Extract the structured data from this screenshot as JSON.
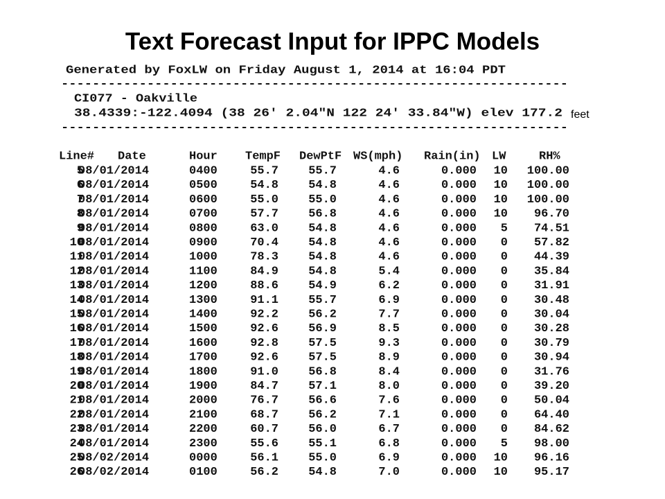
{
  "title": "Text Forecast Input for IPPC Models",
  "report": {
    "generated": "Generated by FoxLW on Friday August 1, 2014 at 16:04 PDT",
    "separator": "-----------------------------------------------------------------",
    "station": "CI077 - Oakville",
    "location": "38.4339:-122.4094  (38 26' 2.04\"N  122 24' 33.84\"W)  elev 177.2",
    "elev_unit": "feet"
  },
  "table": {
    "columns": [
      "Line#",
      "Date",
      "Hour",
      "TempF",
      "DewPtF",
      "WS(mph)",
      "Rain(in)",
      "LW",
      "RH%"
    ],
    "rows": [
      [
        "5",
        "08/01/2014",
        "0400",
        "55.7",
        "55.7",
        "4.6",
        "0.000",
        "10",
        "100.00"
      ],
      [
        "6",
        "08/01/2014",
        "0500",
        "54.8",
        "54.8",
        "4.6",
        "0.000",
        "10",
        "100.00"
      ],
      [
        "7",
        "08/01/2014",
        "0600",
        "55.0",
        "55.0",
        "4.6",
        "0.000",
        "10",
        "100.00"
      ],
      [
        "8",
        "08/01/2014",
        "0700",
        "57.7",
        "56.8",
        "4.6",
        "0.000",
        "10",
        "96.70"
      ],
      [
        "9",
        "08/01/2014",
        "0800",
        "63.0",
        "54.8",
        "4.6",
        "0.000",
        "5",
        "74.51"
      ],
      [
        "10",
        "08/01/2014",
        "0900",
        "70.4",
        "54.8",
        "4.6",
        "0.000",
        "0",
        "57.82"
      ],
      [
        "11",
        "08/01/2014",
        "1000",
        "78.3",
        "54.8",
        "4.6",
        "0.000",
        "0",
        "44.39"
      ],
      [
        "12",
        "08/01/2014",
        "1100",
        "84.9",
        "54.8",
        "5.4",
        "0.000",
        "0",
        "35.84"
      ],
      [
        "13",
        "08/01/2014",
        "1200",
        "88.6",
        "54.9",
        "6.2",
        "0.000",
        "0",
        "31.91"
      ],
      [
        "14",
        "08/01/2014",
        "1300",
        "91.1",
        "55.7",
        "6.9",
        "0.000",
        "0",
        "30.48"
      ],
      [
        "15",
        "08/01/2014",
        "1400",
        "92.2",
        "56.2",
        "7.7",
        "0.000",
        "0",
        "30.04"
      ],
      [
        "16",
        "08/01/2014",
        "1500",
        "92.6",
        "56.9",
        "8.5",
        "0.000",
        "0",
        "30.28"
      ],
      [
        "17",
        "08/01/2014",
        "1600",
        "92.8",
        "57.5",
        "9.3",
        "0.000",
        "0",
        "30.79"
      ],
      [
        "18",
        "08/01/2014",
        "1700",
        "92.6",
        "57.5",
        "8.9",
        "0.000",
        "0",
        "30.94"
      ],
      [
        "19",
        "08/01/2014",
        "1800",
        "91.0",
        "56.8",
        "8.4",
        "0.000",
        "0",
        "31.76"
      ],
      [
        "20",
        "08/01/2014",
        "1900",
        "84.7",
        "57.1",
        "8.0",
        "0.000",
        "0",
        "39.20"
      ],
      [
        "21",
        "08/01/2014",
        "2000",
        "76.7",
        "56.6",
        "7.6",
        "0.000",
        "0",
        "50.04"
      ],
      [
        "22",
        "08/01/2014",
        "2100",
        "68.7",
        "56.2",
        "7.1",
        "0.000",
        "0",
        "64.40"
      ],
      [
        "23",
        "08/01/2014",
        "2200",
        "60.7",
        "56.0",
        "6.7",
        "0.000",
        "0",
        "84.62"
      ],
      [
        "24",
        "08/01/2014",
        "2300",
        "55.6",
        "55.1",
        "6.8",
        "0.000",
        "5",
        "98.00"
      ],
      [
        "25",
        "08/02/2014",
        "0000",
        "56.1",
        "55.0",
        "6.9",
        "0.000",
        "10",
        "96.16"
      ],
      [
        "26",
        "08/02/2014",
        "0100",
        "56.2",
        "54.8",
        "7.0",
        "0.000",
        "10",
        "95.17"
      ]
    ]
  }
}
